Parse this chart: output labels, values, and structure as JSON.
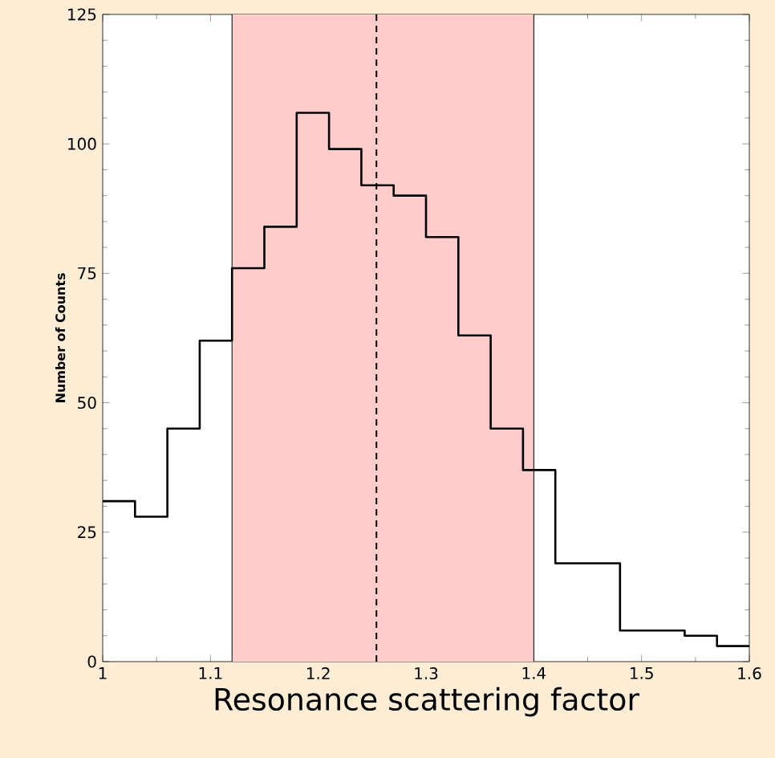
{
  "chart_data": {
    "type": "histogram",
    "xlabel": "Resonance scattering factor",
    "ylabel": "Number of Counts",
    "bins": [
      1.0,
      1.03,
      1.06,
      1.09,
      1.12,
      1.15,
      1.18,
      1.21,
      1.24,
      1.27,
      1.3,
      1.33,
      1.36,
      1.39,
      1.42,
      1.48,
      1.54,
      1.57,
      1.6
    ],
    "values": [
      31,
      28,
      45,
      62,
      76,
      84,
      106,
      99,
      92,
      90,
      82,
      63,
      45,
      37,
      19,
      6,
      5,
      3
    ],
    "color": "#000000",
    "xlim": [
      1,
      1.6
    ],
    "ylim": [
      0,
      125
    ],
    "xticks": [
      1,
      1.1,
      1.2,
      1.3,
      1.4,
      1.5,
      1.6
    ],
    "yticks": [
      0,
      25,
      50,
      75,
      100,
      125
    ],
    "bands": [
      {
        "axis": "x",
        "from": 1.12,
        "to": 1.4,
        "color": "#ffcccc"
      }
    ],
    "ref_lines": [
      {
        "axis": "x",
        "value": 1.254,
        "line_style": "dashed",
        "color": "#000000"
      }
    ]
  }
}
